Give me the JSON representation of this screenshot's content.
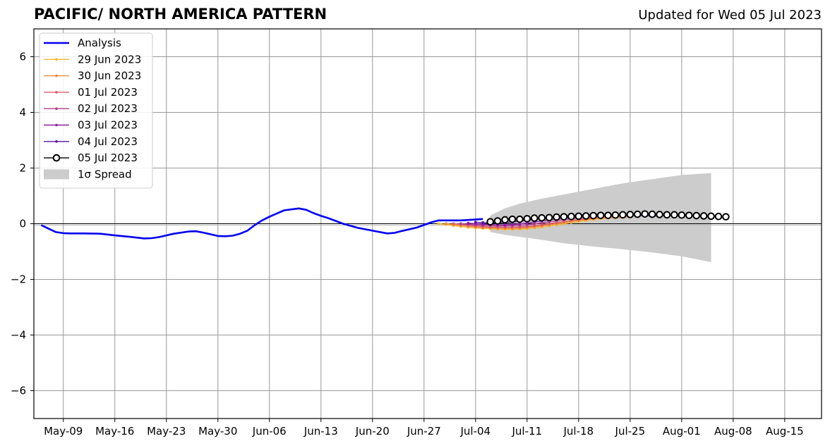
{
  "titles": {
    "main": "PACIFIC/ NORTH AMERICA PATTERN",
    "updated": "Updated for Wed 05 Jul 2023"
  },
  "colors": {
    "analysis": "#0000ee",
    "spread": "#cccccc",
    "grid": "#999999"
  },
  "chart_data": {
    "type": "line",
    "title": "PACIFIC/ NORTH AMERICA PATTERN",
    "subtitle": "Updated for Wed 05 Jul 2023",
    "xlabel": "",
    "ylabel": "",
    "xlim": [
      "2023-05-05",
      "2023-08-20"
    ],
    "ylim": [
      -7,
      7
    ],
    "grid": true,
    "legend_position": "top-left",
    "x_ticks": [
      "2023-05-09",
      "2023-05-16",
      "2023-05-23",
      "2023-05-30",
      "2023-06-06",
      "2023-06-13",
      "2023-06-20",
      "2023-06-27",
      "2023-07-04",
      "2023-07-11",
      "2023-07-18",
      "2023-07-25",
      "2023-08-01",
      "2023-08-08",
      "2023-08-15"
    ],
    "x_tick_labels": [
      "May-09",
      "May-16",
      "May-23",
      "May-30",
      "Jun-06",
      "Jun-13",
      "Jun-20",
      "Jun-27",
      "Jul-04",
      "Jul-11",
      "Jul-18",
      "Jul-25",
      "Aug-01",
      "Aug-08",
      "Aug-15"
    ],
    "y_ticks": [
      -6,
      -4,
      -2,
      0,
      2,
      4,
      6
    ],
    "y_tick_labels": [
      "−6",
      "−4",
      "−2",
      "0",
      "2",
      "4",
      "6"
    ],
    "analysis": {
      "name": "Analysis",
      "color": "#0000ee",
      "x": [
        "2023-05-06",
        "2023-05-07",
        "2023-05-08",
        "2023-05-09",
        "2023-05-10",
        "2023-05-12",
        "2023-05-14",
        "2023-05-16",
        "2023-05-18",
        "2023-05-20",
        "2023-05-21",
        "2023-05-22",
        "2023-05-24",
        "2023-05-26",
        "2023-05-27",
        "2023-05-28",
        "2023-05-30",
        "2023-05-31",
        "2023-06-01",
        "2023-06-02",
        "2023-06-03",
        "2023-06-04",
        "2023-06-05",
        "2023-06-06",
        "2023-06-08",
        "2023-06-10",
        "2023-06-11",
        "2023-06-12",
        "2023-06-13",
        "2023-06-14",
        "2023-06-16",
        "2023-06-18",
        "2023-06-20",
        "2023-06-22",
        "2023-06-23",
        "2023-06-24",
        "2023-06-26",
        "2023-06-28",
        "2023-06-29",
        "2023-06-30",
        "2023-07-02",
        "2023-07-04",
        "2023-07-05"
      ],
      "y": [
        -0.05,
        -0.18,
        -0.3,
        -0.34,
        -0.35,
        -0.35,
        -0.36,
        -0.42,
        -0.47,
        -0.53,
        -0.52,
        -0.48,
        -0.36,
        -0.28,
        -0.27,
        -0.32,
        -0.44,
        -0.45,
        -0.43,
        -0.36,
        -0.25,
        -0.05,
        0.12,
        0.25,
        0.48,
        0.55,
        0.5,
        0.38,
        0.28,
        0.2,
        0.0,
        -0.15,
        -0.25,
        -0.35,
        -0.33,
        -0.26,
        -0.14,
        0.05,
        0.12,
        0.12,
        0.12,
        0.15,
        0.17
      ]
    },
    "forecasts": [
      {
        "name": "29 Jun 2023",
        "color": "#f5b830",
        "start": "2023-06-29",
        "y": [
          0.0,
          -0.03,
          -0.07,
          -0.1,
          -0.13,
          -0.15,
          -0.17,
          -0.18,
          -0.19,
          -0.2,
          -0.2,
          -0.19,
          -0.18,
          -0.15,
          -0.12,
          -0.08,
          -0.04,
          0.0,
          0.04,
          0.08,
          0.12,
          0.15,
          0.18,
          0.2,
          0.22,
          0.23
        ]
      },
      {
        "name": "30 Jun 2023",
        "color": "#f08a3c",
        "start": "2023-06-30",
        "y": [
          0.0,
          -0.03,
          -0.06,
          -0.09,
          -0.12,
          -0.14,
          -0.15,
          -0.16,
          -0.17,
          -0.17,
          -0.16,
          -0.14,
          -0.11,
          -0.08,
          -0.04,
          0.0,
          0.04,
          0.08,
          0.12,
          0.15,
          0.18,
          0.2,
          0.22,
          0.23,
          0.24,
          0.25
        ]
      },
      {
        "name": "01 Jul 2023",
        "color": "#de5a6c",
        "start": "2023-07-01",
        "y": [
          0.0,
          -0.02,
          -0.05,
          -0.08,
          -0.1,
          -0.12,
          -0.13,
          -0.13,
          -0.13,
          -0.12,
          -0.1,
          -0.07,
          -0.04,
          0.0,
          0.04,
          0.08,
          0.12,
          0.15,
          0.18,
          0.21,
          0.23,
          0.25,
          0.26,
          0.27,
          0.28,
          0.28
        ]
      },
      {
        "name": "02 Jul 2023",
        "color": "#b43c8e",
        "start": "2023-07-02",
        "y": [
          0.0,
          -0.02,
          -0.04,
          -0.06,
          -0.07,
          -0.08,
          -0.08,
          -0.07,
          -0.06,
          -0.04,
          -0.01,
          0.03,
          0.07,
          0.11,
          0.15,
          0.18,
          0.21,
          0.24,
          0.26,
          0.28,
          0.29,
          0.3,
          0.31,
          0.31,
          0.31,
          0.31
        ]
      },
      {
        "name": "03 Jul 2023",
        "color": "#8c20a0",
        "start": "2023-07-03",
        "y": [
          0.02,
          0.0,
          -0.02,
          -0.03,
          -0.04,
          -0.04,
          -0.03,
          -0.01,
          0.02,
          0.06,
          0.1,
          0.14,
          0.18,
          0.21,
          0.24,
          0.27,
          0.29,
          0.31,
          0.32,
          0.33,
          0.33,
          0.33,
          0.32,
          0.31,
          0.3,
          0.29
        ]
      },
      {
        "name": "04 Jul 2023",
        "color": "#5a12a0",
        "start": "2023-07-04",
        "y": [
          0.05,
          0.04,
          0.03,
          0.03,
          0.04,
          0.06,
          0.09,
          0.12,
          0.16,
          0.19,
          0.22,
          0.25,
          0.28,
          0.3,
          0.32,
          0.33,
          0.34,
          0.34,
          0.34,
          0.33,
          0.32,
          0.31,
          0.3,
          0.29,
          0.28,
          0.27
        ]
      },
      {
        "name": "05 Jul 2023",
        "color": "#000000",
        "start": "2023-07-06",
        "y": [
          0.07,
          0.1,
          0.14,
          0.16,
          0.16,
          0.18,
          0.2,
          0.21,
          0.22,
          0.24,
          0.25,
          0.26,
          0.27,
          0.28,
          0.29,
          0.3,
          0.3,
          0.31,
          0.32,
          0.33,
          0.34,
          0.35,
          0.34,
          0.33,
          0.32,
          0.32,
          0.31,
          0.3,
          0.29,
          0.28,
          0.27,
          0.26,
          0.25
        ]
      }
    ],
    "spread": {
      "name": "1σ Spread",
      "color": "#cccccc",
      "x": [
        "2023-07-06",
        "2023-07-08",
        "2023-07-10",
        "2023-07-13",
        "2023-07-16",
        "2023-07-20",
        "2023-07-24",
        "2023-07-28",
        "2023-08-01",
        "2023-08-05"
      ],
      "upper": [
        0.3,
        0.55,
        0.72,
        0.9,
        1.05,
        1.25,
        1.45,
        1.6,
        1.75,
        1.82
      ],
      "lower": [
        -0.3,
        -0.4,
        -0.47,
        -0.58,
        -0.7,
        -0.82,
        -0.92,
        -1.03,
        -1.17,
        -1.38
      ]
    },
    "legend": [
      "Analysis",
      "29 Jun 2023",
      "30 Jun 2023",
      "01 Jul 2023",
      "02 Jul 2023",
      "03 Jul 2023",
      "04 Jul 2023",
      "05 Jul 2023",
      "1σ Spread"
    ]
  }
}
